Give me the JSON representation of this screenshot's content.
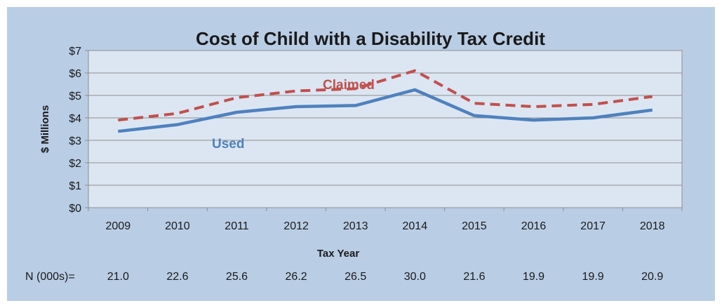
{
  "chart_data": {
    "type": "line",
    "title": "Cost of Child with a Disability Tax Credit",
    "xlabel": "Tax Year",
    "ylabel": "$ Millions",
    "categories": [
      "2009",
      "2010",
      "2011",
      "2012",
      "2013",
      "2014",
      "2015",
      "2016",
      "2017",
      "2018"
    ],
    "ylim": [
      0,
      7
    ],
    "yticks": [
      "$0",
      "$1",
      "$2",
      "$3",
      "$4",
      "$5",
      "$6",
      "$7"
    ],
    "series": [
      {
        "name": "Claimed",
        "values": [
          3.9,
          4.2,
          4.9,
          5.2,
          5.3,
          6.1,
          4.65,
          4.5,
          4.6,
          4.95
        ],
        "color": "#c0504d",
        "style": "dashed"
      },
      {
        "name": "Used",
        "values": [
          3.4,
          3.7,
          4.25,
          4.5,
          4.55,
          5.25,
          4.1,
          3.9,
          4.0,
          4.35
        ],
        "color": "#4f81bd",
        "style": "solid"
      }
    ],
    "grid": true,
    "legend": "inline labels",
    "n_row": {
      "label": "N (000s)=",
      "values": [
        "21.0",
        "22.6",
        "25.6",
        "26.2",
        "26.5",
        "30.0",
        "21.6",
        "19.9",
        "19.9",
        "20.9"
      ]
    }
  }
}
